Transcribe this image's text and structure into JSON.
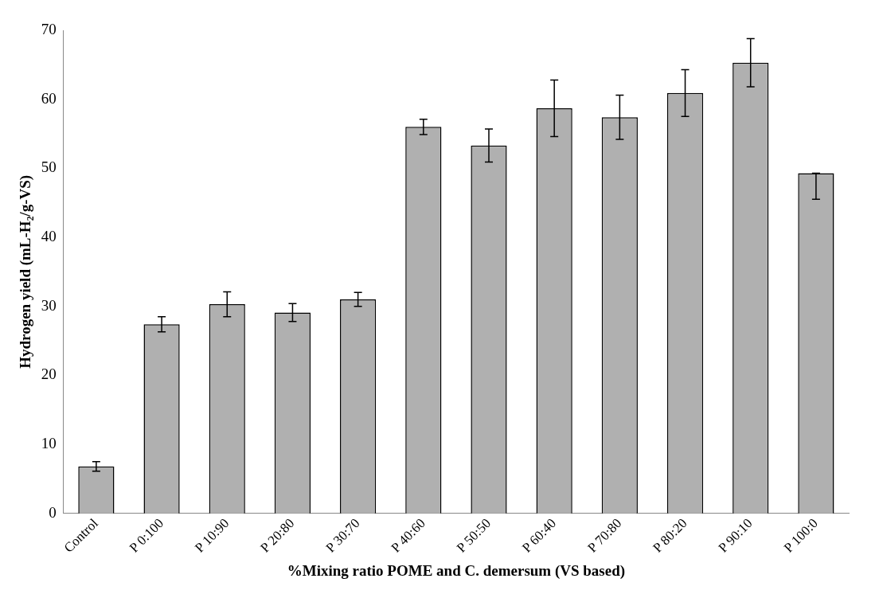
{
  "chart_data": {
    "type": "bar",
    "xlabel": "%Mixing ratio POME and C. demersum (VS based)",
    "ylabel": "Hydrogen yield (mL-H₂/g-VS)",
    "categories": [
      "Control",
      "P 0:100",
      "P 10:90",
      "P 20:80",
      "P 30:70",
      "P 40:60",
      "P 50:50",
      "P 60:40",
      "P 70:80",
      "P 80:20",
      "P 90:10",
      "P 100:0"
    ],
    "values": [
      6.8,
      27.4,
      30.3,
      29.1,
      31.0,
      56.0,
      53.3,
      58.7,
      57.4,
      60.9,
      65.3,
      49.3
    ],
    "errors": [
      0.7,
      1.1,
      1.8,
      1.3,
      1.0,
      1.1,
      2.4,
      4.1,
      3.2,
      3.4,
      3.5,
      [
        45.5,
        49.3
      ]
    ],
    "color": "#b0b0b0",
    "ylim": [
      0,
      70
    ],
    "yticks": [
      0,
      10,
      20,
      30,
      40,
      50,
      60,
      70
    ],
    "grid": false,
    "legend": false
  }
}
